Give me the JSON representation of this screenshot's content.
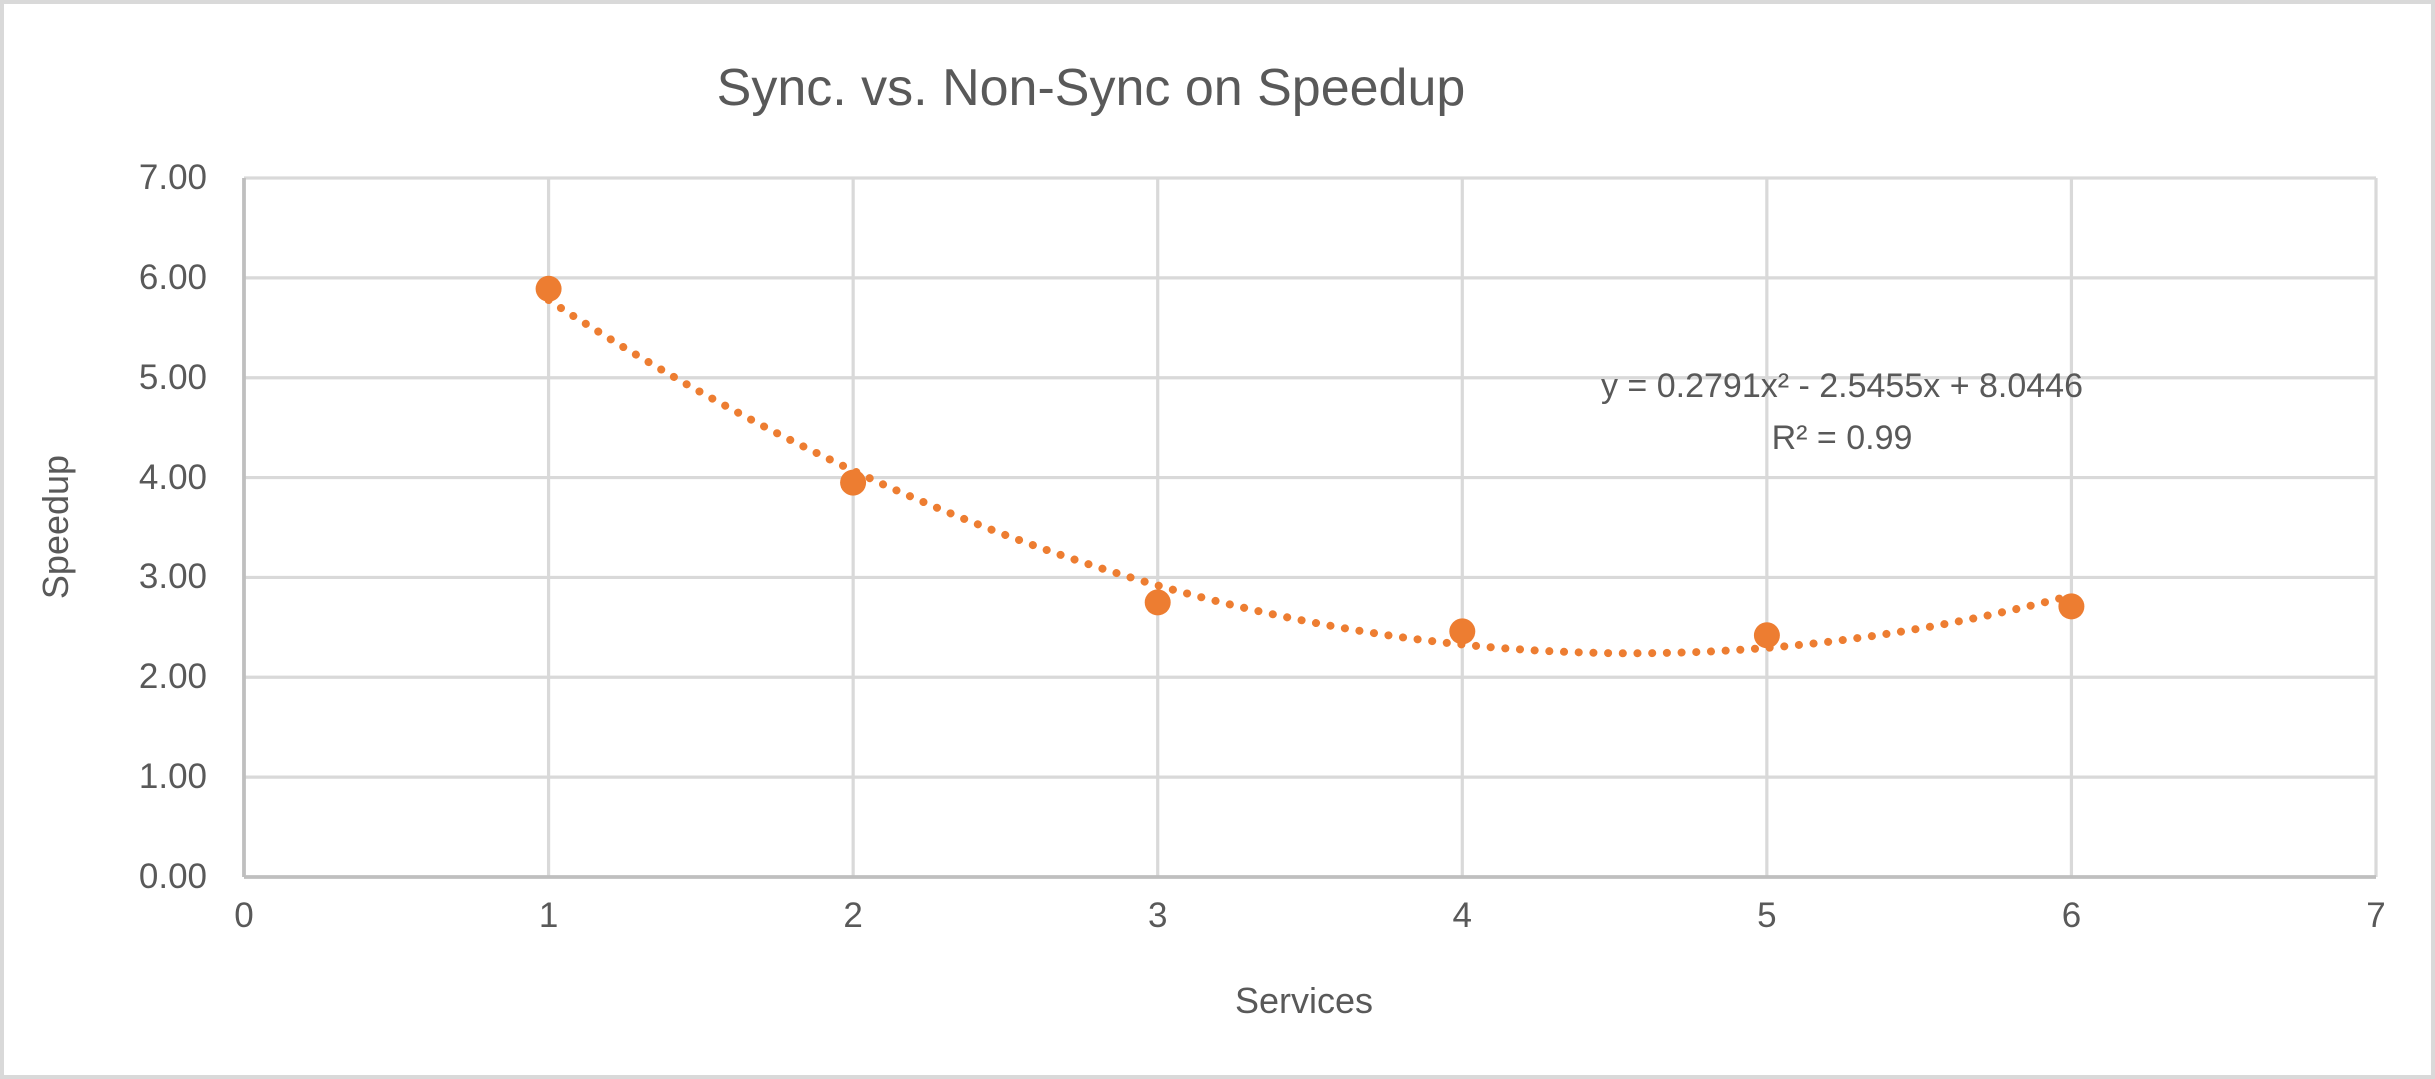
{
  "chart_data": {
    "type": "scatter",
    "title": "Sync. vs. Non-Sync on Speedup",
    "xlabel": "Services",
    "ylabel": "Speedup",
    "xlim": [
      0,
      7
    ],
    "ylim": [
      0,
      7
    ],
    "grid": true,
    "x_tick_labels": [
      "0",
      "1",
      "2",
      "3",
      "4",
      "5",
      "6",
      "7"
    ],
    "y_tick_labels": [
      "0.00",
      "1.00",
      "2.00",
      "3.00",
      "4.00",
      "5.00",
      "6.00",
      "7.00"
    ],
    "series": [
      {
        "name": "Speedup",
        "x": [
          1,
          2,
          3,
          4,
          5,
          6
        ],
        "y": [
          5.89,
          3.95,
          2.75,
          2.46,
          2.42,
          2.71
        ],
        "marker": "circle",
        "marker_color": "#ED7D31"
      }
    ],
    "trendline": {
      "type": "polynomial",
      "order": 2,
      "a": 0.2791,
      "b": -2.5455,
      "c": 8.0446,
      "x_start": 1,
      "x_end": 6,
      "style": "dotted",
      "color": "#ED7D31",
      "equation_label": "y = 0.2791x² - 2.5455x + 8.0446",
      "r_squared_label": "R² = 0.99"
    },
    "colors": {
      "gridline": "#D9D9D9",
      "axis_line": "#BFBFBF",
      "text": "#595959",
      "background": "#FFFFFF",
      "frame_border": "#D9D9D9"
    },
    "legend": "none"
  }
}
